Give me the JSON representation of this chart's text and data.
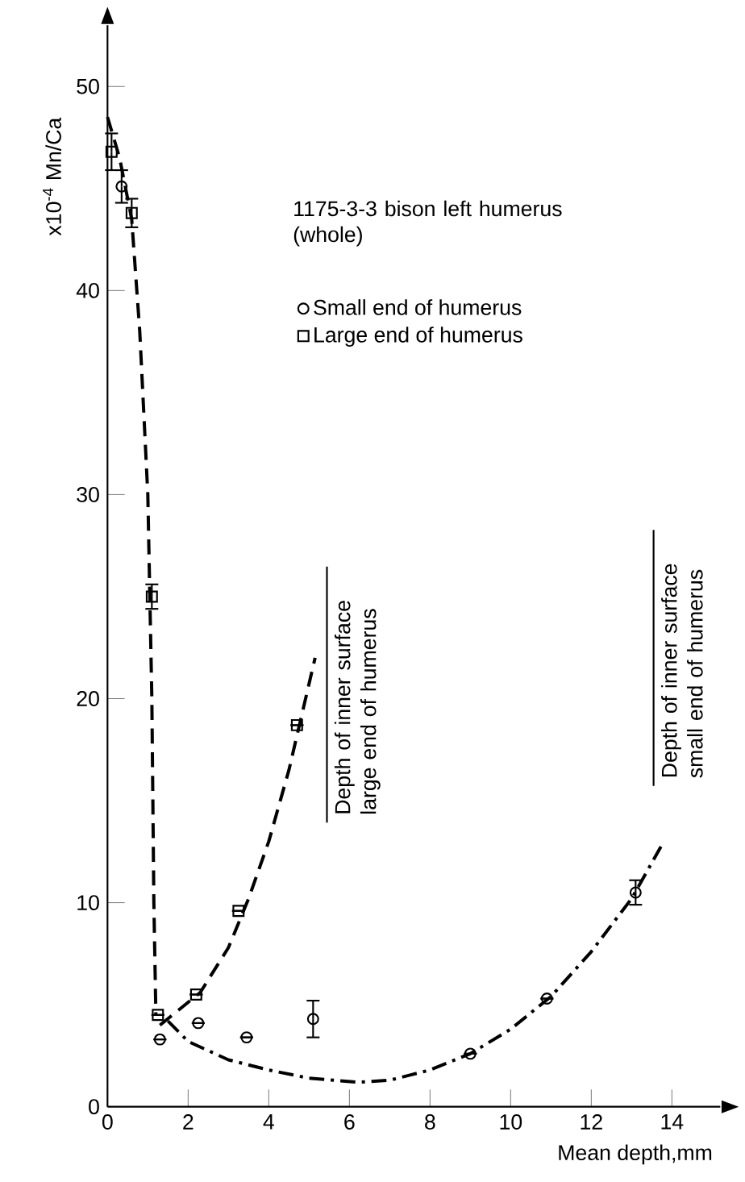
{
  "chart_data": {
    "type": "scatter",
    "legend_title": "1175-3-3 bison left humerus (whole)",
    "xlabel": "Mean depth,mm",
    "ylabel": "x10$^{-4}$ Mn/Ca",
    "xlim": [
      0,
      15.2
    ],
    "ylim": [
      0,
      53
    ],
    "xticks": [
      0,
      2,
      4,
      6,
      8,
      10,
      12,
      14
    ],
    "yticks": [
      0,
      10,
      20,
      30,
      40,
      50
    ],
    "legend": "top right",
    "annotations": [
      "Depth of inner surface large end of humerus",
      "Depth of inner surface small end of humerus"
    ],
    "series": [
      {
        "name": "Small end of humerus",
        "marker": "circle",
        "color": "#000000",
        "x": [
          0.35,
          1.3,
          2.25,
          3.45,
          5.1,
          9.0,
          10.9,
          13.1
        ],
        "values": [
          45.1,
          3.3,
          4.1,
          3.4,
          4.3,
          2.6,
          5.3,
          10.5
        ],
        "errors": [
          0.8,
          null,
          null,
          null,
          0.9,
          null,
          null,
          0.6
        ]
      },
      {
        "name": "Large end of humerus",
        "marker": "square",
        "color": "#000000",
        "x": [
          0.1,
          0.6,
          1.1,
          1.25,
          2.2,
          3.25,
          4.7
        ],
        "values": [
          46.8,
          43.8,
          25.0,
          4.5,
          5.5,
          9.6,
          18.7
        ],
        "errors": [
          0.9,
          0.7,
          0.6,
          null,
          null,
          null,
          null
        ]
      },
      {
        "type": "line",
        "line_style": "dashed",
        "color": "#000000",
        "x": [
          0,
          0.3,
          0.6,
          0.8,
          1.0,
          1.1,
          1.15,
          1.2
        ],
        "values": [
          48.5,
          46.5,
          43.5,
          38,
          30,
          20,
          10,
          4.5
        ]
      },
      {
        "type": "line",
        "line_style": "dashed",
        "color": "#000000",
        "x": [
          1.3,
          1.8,
          2.3,
          3.0,
          3.5,
          4.0,
          4.5,
          5.15
        ],
        "values": [
          4.0,
          4.8,
          5.6,
          7.8,
          10.2,
          13,
          16.5,
          22
        ]
      },
      {
        "type": "line",
        "line_style": "dashdot",
        "color": "#000000",
        "x": [
          1.5,
          2,
          3,
          4,
          5,
          6.2,
          7,
          8,
          9,
          10,
          11,
          12,
          13,
          13.8
        ],
        "values": [
          4.2,
          3.2,
          2.3,
          1.8,
          1.4,
          1.2,
          1.3,
          1.8,
          2.6,
          3.8,
          5.4,
          7.6,
          10.2,
          13
        ]
      }
    ]
  }
}
